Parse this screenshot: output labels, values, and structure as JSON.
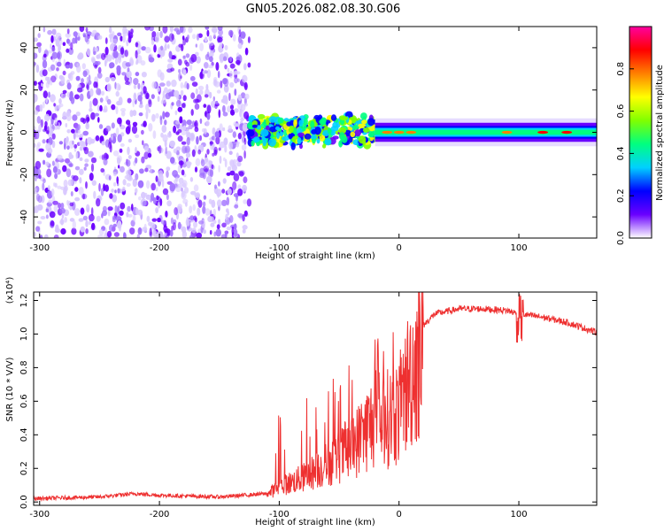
{
  "figure_title": "GN05.2026.082.08.30.G06",
  "chart_data": [
    {
      "type": "heatmap",
      "id": "spectrogram",
      "xlabel": "Height of straight line (km)",
      "ylabel": "Frequency (Hz)",
      "xlim": [
        -305,
        165
      ],
      "ylim": [
        -50,
        50
      ],
      "xticks": [
        -300,
        -200,
        -100,
        0,
        100
      ],
      "yticks": [
        -40,
        -20,
        0,
        20,
        40
      ],
      "colorbar": {
        "label": "Normalized spectral amplitude",
        "range": [
          0,
          1
        ],
        "ticks": [
          0.0,
          0.2,
          0.4,
          0.6,
          0.8
        ],
        "colormap": [
          "#ffffff",
          "#6a00ff",
          "#0000ff",
          "#00d0ff",
          "#00ff80",
          "#80ff00",
          "#ffff00",
          "#ff8000",
          "#ff0000",
          "#ff00a0"
        ]
      },
      "regions": [
        {
          "x_from": -305,
          "x_to": -125,
          "description": "noise",
          "freq_spread": [
            -50,
            50
          ]
        },
        {
          "x_from": -125,
          "x_to": -20,
          "description": "signal",
          "freq_center": 0,
          "freq_halfwidth": 8
        },
        {
          "x_from": -20,
          "x_to": 165,
          "description": "tone",
          "freq_center": 0,
          "freq_halfwidth": 3
        }
      ]
    },
    {
      "type": "line",
      "id": "snr",
      "xlabel": "Height of straight line (km)",
      "ylabel": "SNR (10 * V/V)",
      "yscale_label": "(x10⁴)",
      "xlim": [
        -305,
        165
      ],
      "ylim": [
        -0.02,
        1.25
      ],
      "xticks": [
        -300,
        -200,
        -100,
        0,
        100
      ],
      "yticks": [
        0.0,
        0.2,
        0.4,
        0.6,
        0.8,
        1.0,
        1.2
      ],
      "color": "#ee3030",
      "envelope": {
        "x": [
          -305,
          -250,
          -220,
          -200,
          -150,
          -110,
          -100,
          -80,
          -60,
          -40,
          -30,
          -20,
          -10,
          0,
          10,
          20,
          30,
          50,
          70,
          90,
          100,
          120,
          140,
          165
        ],
        "y": [
          0.02,
          0.03,
          0.05,
          0.04,
          0.03,
          0.05,
          0.1,
          0.16,
          0.25,
          0.35,
          0.45,
          0.55,
          0.55,
          0.6,
          0.85,
          1.05,
          1.12,
          1.15,
          1.15,
          1.14,
          1.12,
          1.1,
          1.07,
          1.01
        ]
      }
    }
  ]
}
